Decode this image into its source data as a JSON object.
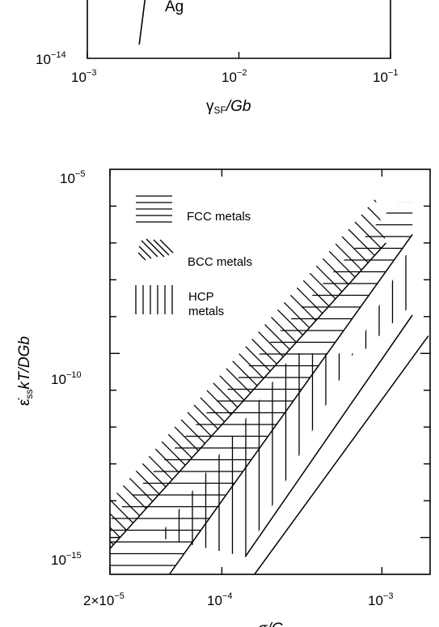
{
  "chart_data": [
    {
      "type": "line",
      "title": "",
      "xlabel": {
        "symbol": "γ",
        "subscript": "SF",
        "rest": "/Gb"
      },
      "ylabel": "",
      "x_scale": "log",
      "y_scale": "log",
      "xlim": [
        0.001,
        0.1
      ],
      "x_ticks": [
        {
          "base": "10",
          "exp": "−3"
        },
        {
          "base": "10",
          "exp": "−2"
        },
        {
          "base": "10",
          "exp": "−1"
        }
      ],
      "y_ticks": [
        {
          "base": "10",
          "exp": "−14"
        }
      ],
      "series": [
        {
          "values": [
            [
              0.0022,
              1.2e-14
            ],
            [
              0.003,
              1e-13
            ]
          ]
        }
      ],
      "points": [
        {
          "label": "Ag",
          "x": 0.003,
          "y": 1e-13
        }
      ]
    },
    {
      "type": "area",
      "title": "",
      "xlabel": "σ/G",
      "ylabel": {
        "symbol": "ε̇",
        "subscript": "ss",
        "rest": "kT/DGb"
      },
      "x_scale": "log",
      "y_scale": "log",
      "xlim": [
        2e-05,
        0.002
      ],
      "ylim": [
        1e-16,
        1e-05
      ],
      "x_ticks": [
        {
          "label": "2×10",
          "exp": "−5"
        },
        {
          "label": "10",
          "exp": "−4"
        },
        {
          "label": "10",
          "exp": "−3"
        }
      ],
      "y_ticks": [
        {
          "label": "10",
          "exp": "−5"
        },
        {
          "label": "10",
          "exp": "−10"
        },
        {
          "label": "10",
          "exp": "−15"
        }
      ],
      "legend": [
        {
          "label": "FCC metals",
          "pattern": "horizontal"
        },
        {
          "label": "BCC metals",
          "pattern": "diagonal"
        },
        {
          "label_lines": [
            "HCP",
            "metals"
          ],
          "pattern": "vertical"
        }
      ],
      "series": [
        {
          "name": "BCC metals",
          "pattern": "diagonal",
          "polygon": [
            [
              2e-05,
              1e-14
            ],
            [
              2e-05,
              5e-16
            ],
            [
              0.00106,
              1e-07
            ],
            [
              0.00091,
              1.6e-06
            ]
          ]
        },
        {
          "name": "FCC metals",
          "pattern": "horizontal",
          "polygon": [
            [
              2e-05,
              3e-15
            ],
            [
              2e-05,
              1e-16
            ],
            [
              4.7e-05,
              1e-16
            ],
            [
              0.00155,
              1.7e-07
            ],
            [
              0.00155,
              1.3e-06
            ],
            [
              0.00123,
              1.3e-06
            ]
          ]
        },
        {
          "name": "HCP metals",
          "pattern": "vertical",
          "polygon": [
            [
              4e-05,
              1e-15
            ],
            [
              0.00028,
              1e-10
            ],
            [
              0.00074,
              1e-10
            ],
            [
              0.00155,
              2.2e-09
            ],
            [
              0.00155,
              1e-07
            ],
            [
              0.00014,
              3e-16
            ]
          ]
        }
      ],
      "boundary_lines": [
        [
          [
            2e-05,
            5e-16
          ],
          [
            0.00106,
            1e-07
          ]
        ],
        [
          [
            4.7e-05,
            1e-16
          ],
          [
            0.00155,
            1.7e-07
          ]
        ],
        [
          [
            0.00014,
            3e-16
          ],
          [
            0.00155,
            1.1e-09
          ]
        ],
        [
          [
            0.00016,
            1e-16
          ],
          [
            0.00195,
            3e-10
          ]
        ]
      ]
    }
  ]
}
